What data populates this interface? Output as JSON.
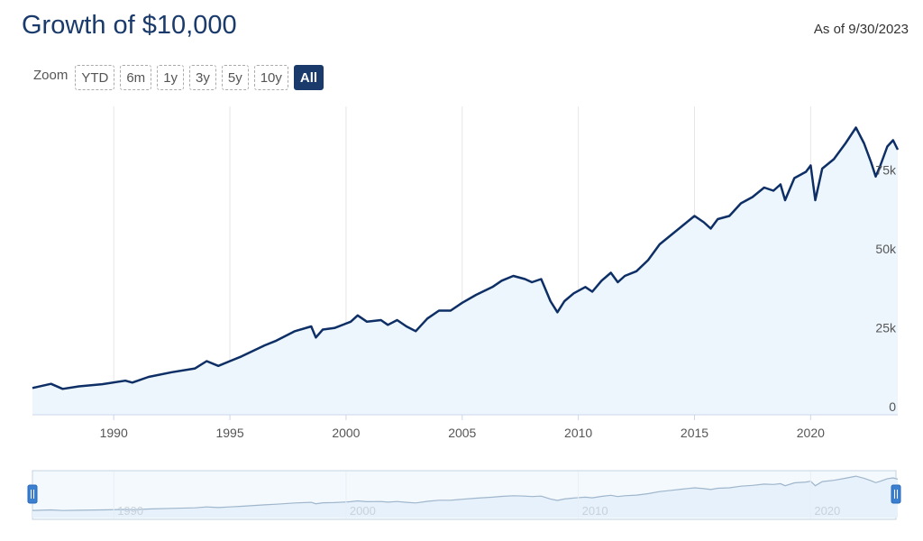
{
  "header": {
    "title": "Growth of $10,000",
    "as_of": "As of 9/30/2023"
  },
  "zoom": {
    "label": "Zoom",
    "buttons": [
      "YTD",
      "6m",
      "1y",
      "3y",
      "5y",
      "10y",
      "All"
    ],
    "active": "All"
  },
  "colors": {
    "line": "#0d2f66",
    "fill": "#eef6fd",
    "grid": "#e6e6e6",
    "navigator_line": "#9fb6cc",
    "handle": "#3a7fd0"
  },
  "chart_data": {
    "type": "area",
    "xlim": [
      1986.5,
      2023.75
    ],
    "ylim": [
      0,
      100000
    ],
    "x_ticks": [
      1990,
      1995,
      2000,
      2005,
      2010,
      2015,
      2020
    ],
    "y_ticks": [
      0,
      25000,
      50000,
      75000
    ],
    "y_tick_labels": [
      "0",
      "25k",
      "50k",
      "75k"
    ],
    "grid": true,
    "x": [
      1986.5,
      1987.3,
      1987.8,
      1988.5,
      1989.5,
      1990.5,
      1990.8,
      1991.5,
      1992.5,
      1993.5,
      1994.0,
      1994.5,
      1995.0,
      1995.5,
      1996.5,
      1997.0,
      1997.8,
      1998.5,
      1998.7,
      1999.0,
      1999.5,
      2000.2,
      2000.5,
      2000.9,
      2001.5,
      2001.8,
      2002.2,
      2002.6,
      2003.0,
      2003.5,
      2004.0,
      2004.5,
      2005.0,
      2005.6,
      2006.3,
      2006.7,
      2007.2,
      2007.7,
      2008.0,
      2008.4,
      2008.8,
      2009.1,
      2009.4,
      2009.8,
      2010.3,
      2010.6,
      2011.0,
      2011.4,
      2011.7,
      2012.0,
      2012.5,
      2013.0,
      2013.5,
      2014.0,
      2014.5,
      2015.0,
      2015.4,
      2015.7,
      2016.0,
      2016.5,
      2017.0,
      2017.5,
      2018.0,
      2018.4,
      2018.7,
      2018.9,
      2019.3,
      2019.8,
      2020.0,
      2020.2,
      2020.5,
      2021.0,
      2021.5,
      2021.95,
      2022.3,
      2022.6,
      2022.8,
      2023.0,
      2023.3,
      2023.55,
      2023.75
    ],
    "y": [
      8500,
      9800,
      8200,
      9000,
      9700,
      10800,
      10200,
      12000,
      13500,
      14700,
      17000,
      15500,
      17000,
      18500,
      22000,
      23500,
      26500,
      28000,
      24500,
      27000,
      27500,
      29500,
      31500,
      29500,
      30000,
      28500,
      30000,
      28000,
      26500,
      30500,
      33000,
      33000,
      35500,
      38000,
      40500,
      42500,
      44000,
      43000,
      42000,
      43000,
      36000,
      32500,
      36000,
      38500,
      40500,
      39000,
      42500,
      45000,
      42000,
      44000,
      45500,
      49000,
      54000,
      57000,
      60000,
      63000,
      61000,
      59000,
      62000,
      63000,
      67000,
      69000,
      72000,
      71000,
      73000,
      68000,
      75000,
      77000,
      79000,
      68000,
      78000,
      81000,
      86000,
      91000,
      86000,
      80000,
      75500,
      79000,
      85000,
      87000,
      84000
    ]
  },
  "navigator": {
    "x_ticks": [
      "1990",
      "2000",
      "2010",
      "2020"
    ]
  }
}
